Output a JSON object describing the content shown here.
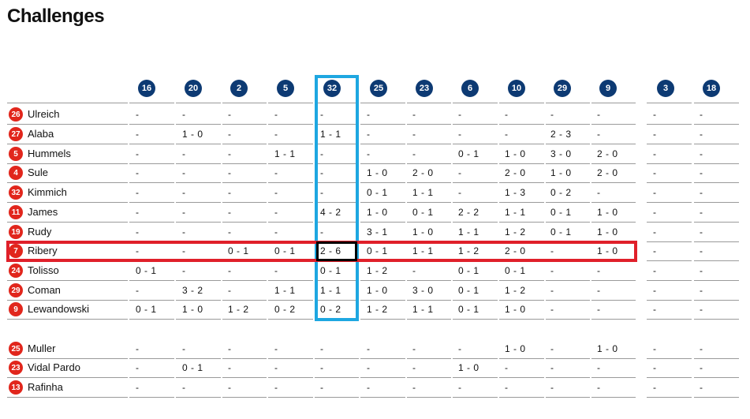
{
  "title": "Challenges",
  "columns": [
    "16",
    "20",
    "2",
    "5",
    "32",
    "25",
    "23",
    "6",
    "10",
    "29",
    "9",
    "3",
    "18"
  ],
  "rows": [
    {
      "number": "26",
      "name": "Ulreich",
      "values": [
        "-",
        "-",
        "-",
        "-",
        "-",
        "-",
        "-",
        "-",
        "-",
        "-",
        "-",
        "-",
        "-"
      ]
    },
    {
      "number": "27",
      "name": "Alaba",
      "values": [
        "-",
        "1 - 0",
        "-",
        "-",
        "1 - 1",
        "-",
        "-",
        "-",
        "-",
        "2 - 3",
        "-",
        "-",
        "-"
      ]
    },
    {
      "number": "5",
      "name": "Hummels",
      "values": [
        "-",
        "-",
        "-",
        "1 - 1",
        "-",
        "-",
        "-",
        "0 - 1",
        "1 - 0",
        "3 - 0",
        "2 - 0",
        "-",
        "-"
      ]
    },
    {
      "number": "4",
      "name": "Sule",
      "values": [
        "-",
        "-",
        "-",
        "-",
        "-",
        "1 - 0",
        "2 - 0",
        "-",
        "2 - 0",
        "1 - 0",
        "2 - 0",
        "-",
        "-"
      ]
    },
    {
      "number": "32",
      "name": "Kimmich",
      "values": [
        "-",
        "-",
        "-",
        "-",
        "-",
        "0 - 1",
        "1 - 1",
        "-",
        "1 - 3",
        "0 - 2",
        "-",
        "-",
        "-"
      ]
    },
    {
      "number": "11",
      "name": "James",
      "values": [
        "-",
        "-",
        "-",
        "-",
        "4 - 2",
        "1 - 0",
        "0 - 1",
        "2 - 2",
        "1 - 1",
        "0 - 1",
        "1 - 0",
        "-",
        "-"
      ]
    },
    {
      "number": "19",
      "name": "Rudy",
      "values": [
        "-",
        "-",
        "-",
        "-",
        "-",
        "3 - 1",
        "1 - 0",
        "1 - 1",
        "1 - 2",
        "0 - 1",
        "1 - 0",
        "-",
        "-"
      ]
    },
    {
      "number": "7",
      "name": "Ribery",
      "values": [
        "-",
        "-",
        "0 - 1",
        "0 - 1",
        "2 - 6",
        "0 - 1",
        "1 - 1",
        "1 - 2",
        "2 - 0",
        "-",
        "1 - 0",
        "-",
        "-"
      ]
    },
    {
      "number": "24",
      "name": "Tolisso",
      "values": [
        "0 - 1",
        "-",
        "-",
        "-",
        "0 - 1",
        "1 - 2",
        "-",
        "0 - 1",
        "0 - 1",
        "-",
        "-",
        "-",
        "-"
      ]
    },
    {
      "number": "29",
      "name": "Coman",
      "values": [
        "-",
        "3 - 2",
        "-",
        "1 - 1",
        "1 - 1",
        "1 - 0",
        "3 - 0",
        "0 - 1",
        "1 - 2",
        "-",
        "-",
        "-",
        "-"
      ]
    },
    {
      "number": "9",
      "name": "Lewandowski",
      "values": [
        "0 - 1",
        "1 - 0",
        "1 - 2",
        "0 - 2",
        "0 - 2",
        "1 - 2",
        "1 - 1",
        "0 - 1",
        "1 - 0",
        "-",
        "-",
        "-",
        "-"
      ]
    },
    {
      "number": "25",
      "name": "Muller",
      "values": [
        "-",
        "-",
        "-",
        "-",
        "-",
        "-",
        "-",
        "-",
        "1 - 0",
        "-",
        "1 - 0",
        "-",
        "-"
      ]
    },
    {
      "number": "23",
      "name": "Vidal Pardo",
      "values": [
        "-",
        "0 - 1",
        "-",
        "-",
        "-",
        "-",
        "-",
        "1 - 0",
        "-",
        "-",
        "-",
        "-",
        "-"
      ]
    },
    {
      "number": "13",
      "name": "Rafinha",
      "values": [
        "-",
        "-",
        "-",
        "-",
        "-",
        "-",
        "-",
        "-",
        "-",
        "-",
        "-",
        "-",
        "-"
      ]
    }
  ],
  "colors": {
    "column_badge": "#0d3a73",
    "row_badge": "#e1261c",
    "highlight_column": "#1ea7e1",
    "highlight_row": "#e0202a",
    "highlight_cell": "#000000"
  },
  "highlights": {
    "column": "32",
    "row": "Ribery"
  }
}
